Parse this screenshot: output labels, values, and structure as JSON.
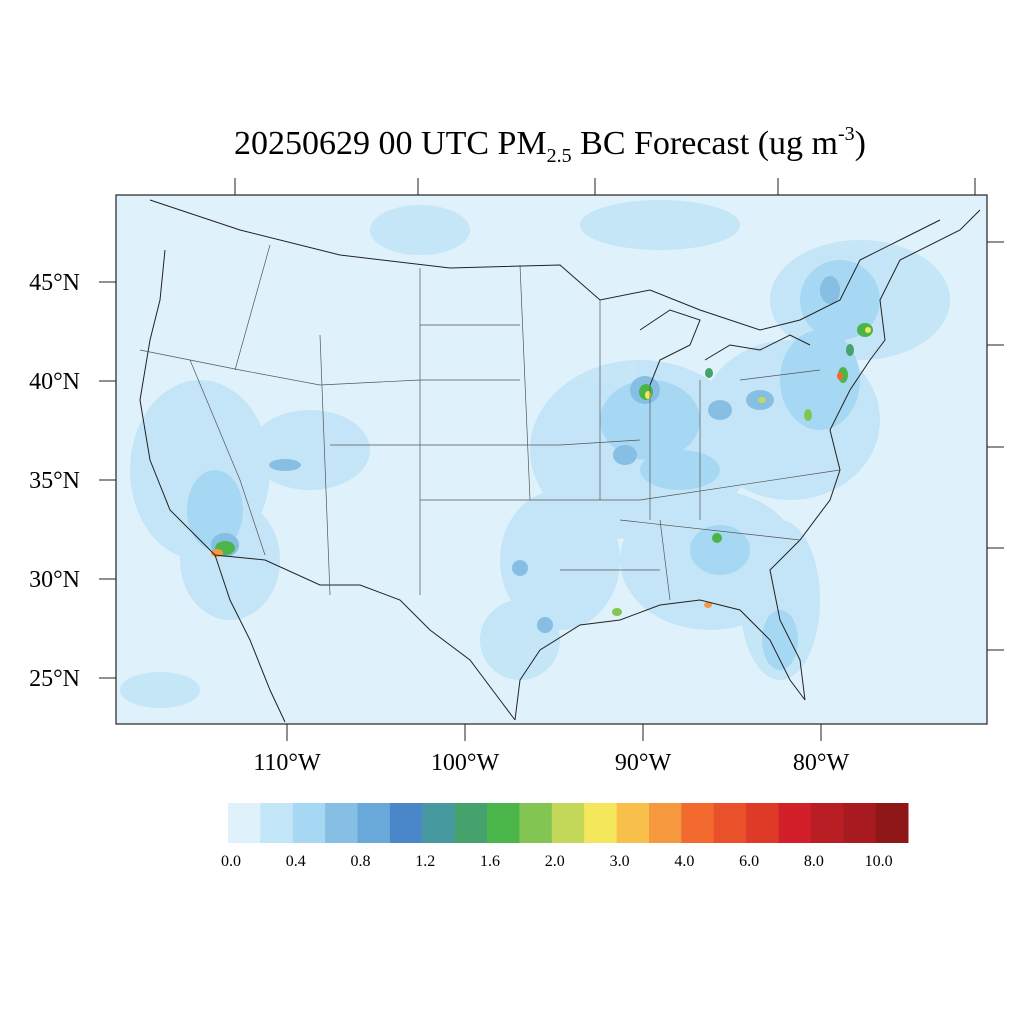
{
  "title": {
    "prefix": "20250629 00 UTC PM",
    "subscript": "2.5",
    "middle": " BC Forecast (ug m",
    "superscript": "-3",
    "suffix": ")"
  },
  "lat_labels": [
    "45°N",
    "40°N",
    "35°N",
    "30°N",
    "25°N"
  ],
  "lon_labels": [
    "110°W",
    "100°W",
    "90°W",
    "80°W"
  ],
  "colorbar": {
    "labels": [
      "0.0",
      "0.4",
      "0.8",
      "1.2",
      "1.6",
      "2.0",
      "3.0",
      "4.0",
      "6.0",
      "8.0",
      "10.0"
    ],
    "colors": [
      "#dff1fa",
      "#c2e5f7",
      "#a6d8f3",
      "#86bfe3",
      "#69a9d9",
      "#4a87c8",
      "#46999f",
      "#46a26c",
      "#4ab64a",
      "#83c552",
      "#c4d95a",
      "#f5e75b",
      "#f8c04a",
      "#f5983e",
      "#f26a2e",
      "#e9512b",
      "#df3a28",
      "#d31f2a",
      "#ba1e25",
      "#a71b20",
      "#901718"
    ]
  },
  "colors": {
    "background": "#dff1fa",
    "outline": "#222222"
  }
}
